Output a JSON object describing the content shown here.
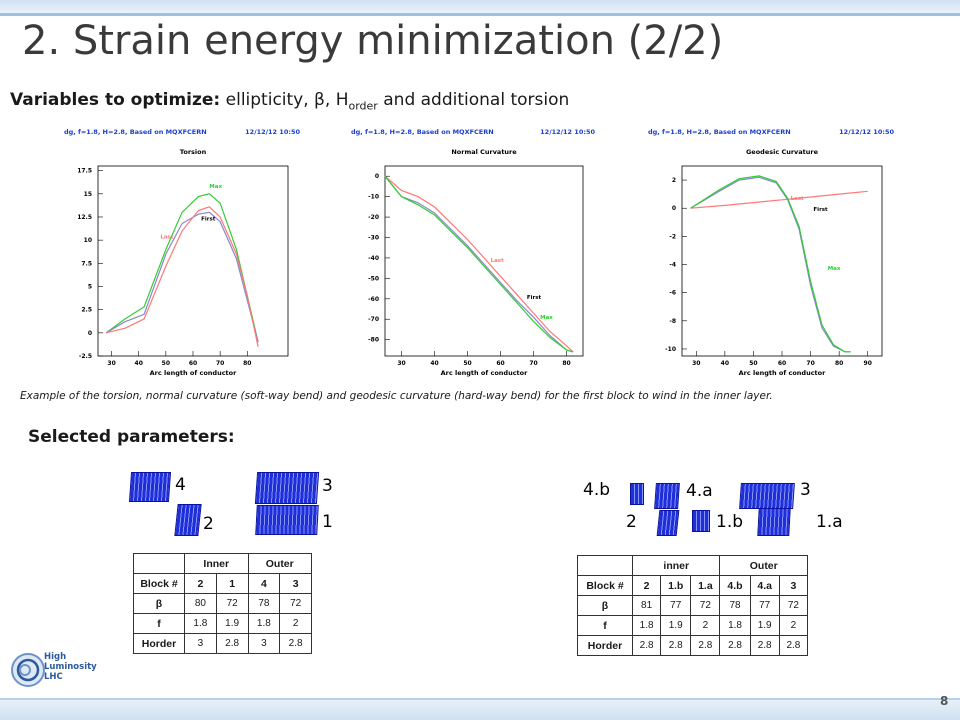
{
  "slide": {
    "title": "2. Strain energy minimization (2/2)",
    "subtitle_bold": "Variables to optimize:",
    "subtitle_rest_1": " ellipticity, β, H",
    "subtitle_sub": "order",
    "subtitle_rest_2": " and additional torsion",
    "caption": "Example of the torsion, normal curvature (soft-way bend) and geodesic curvature (hard-way bend) for the first block to wind in the inner layer.",
    "selected_label": "Selected parameters:",
    "page_number": "8"
  },
  "logo": {
    "line1": "High",
    "line2": "Luminosity",
    "line3": "LHC"
  },
  "plots": [
    {
      "header_left": "dg, f=1.8, H=2.8, Based on MQXFCERN",
      "header_right": "12/12/12   10:50",
      "plot_title": "Torsion",
      "xlabel": "Arc length of conductor",
      "x_ticks": [
        "30",
        "40",
        "50",
        "60",
        "70",
        "80"
      ],
      "y_ticks": [
        "17.5",
        "15",
        "12.5",
        "10",
        "7.5",
        "5",
        "2.5",
        "0",
        "-2.5"
      ],
      "legend": [
        "Max",
        "First",
        "Last"
      ]
    },
    {
      "header_left": "dg, f=1.8, H=2.8, Based on MQXFCERN",
      "header_right": "12/12/12   10:50",
      "plot_title": "Normal Curvature",
      "xlabel": "Arc length of conductor",
      "x_ticks": [
        "30",
        "40",
        "50",
        "60",
        "70",
        "80"
      ],
      "y_ticks": [
        "0",
        "-10",
        "-20",
        "-30",
        "-40",
        "-50",
        "-60",
        "-70",
        "-80"
      ],
      "legend": [
        "Last",
        "First",
        "Max"
      ]
    },
    {
      "header_left": "dg, f=1.8, H=2.8, Based on MQXFCERN",
      "header_right": "12/12/12   10:50",
      "plot_title": "Geodesic Curvature",
      "xlabel": "Arc length of conductor",
      "x_ticks": [
        "30",
        "40",
        "50",
        "60",
        "70",
        "80",
        "90"
      ],
      "y_ticks": [
        "2",
        "0",
        "-2",
        "-4",
        "-6",
        "-8",
        "-10"
      ],
      "legend": [
        "Last",
        "First",
        "Max"
      ]
    }
  ],
  "block_labels_left": [
    "4",
    "3",
    "2",
    "1"
  ],
  "block_labels_right": [
    "4.b",
    "4.a",
    "3",
    "2",
    "1.b",
    "1.a"
  ],
  "table_left": {
    "group_inner": "Inner",
    "group_outer": "Outer",
    "row_label_block": "Block #",
    "blocks": [
      "2",
      "1",
      "4",
      "3"
    ],
    "row_label_beta": "β",
    "beta": [
      "80",
      "72",
      "78",
      "72"
    ],
    "row_label_f": "f",
    "f": [
      "1.8",
      "1.9",
      "1.8",
      "2"
    ],
    "row_label_h": "Horder",
    "h": [
      "3",
      "2.8",
      "3",
      "2.8"
    ]
  },
  "table_right": {
    "group_inner": "inner",
    "group_outer": "Outer",
    "row_label_block": "Block #",
    "blocks": [
      "2",
      "1.b",
      "1.a",
      "4.b",
      "4.a",
      "3"
    ],
    "row_label_beta": "β",
    "beta": [
      "81",
      "77",
      "72",
      "78",
      "77",
      "72"
    ],
    "row_label_f": "f",
    "f": [
      "1.8",
      "1.9",
      "2",
      "1.8",
      "1.9",
      "2"
    ],
    "row_label_h": "Horder",
    "h": [
      "2.8",
      "2.8",
      "2.8",
      "2.8",
      "2.8",
      "2.8"
    ]
  },
  "chart_data": [
    {
      "type": "line",
      "title": "Torsion",
      "xlabel": "Arc length of conductor",
      "ylabel": "",
      "xlim": [
        25,
        95
      ],
      "ylim": [
        -2.5,
        18
      ],
      "series": [
        {
          "name": "Max",
          "color": "#33cc33",
          "x": [
            28,
            35,
            42,
            50,
            56,
            62,
            66,
            70,
            76,
            80,
            84
          ],
          "y": [
            0,
            1.5,
            2.8,
            9,
            13,
            14.7,
            15,
            14,
            9,
            4,
            -1
          ]
        },
        {
          "name": "First",
          "color": "#8888cc",
          "x": [
            28,
            35,
            42,
            50,
            56,
            62,
            66,
            70,
            76,
            80,
            84
          ],
          "y": [
            0,
            1.2,
            2.0,
            8.5,
            11.8,
            12.8,
            13,
            12,
            8,
            3.5,
            -1
          ]
        },
        {
          "name": "Last",
          "color": "#ff7777",
          "x": [
            28,
            35,
            42,
            50,
            56,
            62,
            66,
            70,
            76,
            80,
            84
          ],
          "y": [
            0,
            0.5,
            1.5,
            7.2,
            11.0,
            13.2,
            13.6,
            12.5,
            8.5,
            4,
            -1.5
          ]
        }
      ]
    },
    {
      "type": "line",
      "title": "Normal Curvature",
      "xlabel": "Arc length of conductor",
      "ylabel": "",
      "xlim": [
        25,
        85
      ],
      "ylim": [
        -88,
        5
      ],
      "series": [
        {
          "name": "Last",
          "color": "#ff7777",
          "x": [
            25,
            30,
            35,
            40,
            45,
            50,
            55,
            60,
            65,
            70,
            75,
            80,
            82
          ],
          "y": [
            0,
            -7,
            -10,
            -15,
            -23,
            -31,
            -40,
            -49,
            -58,
            -67,
            -76,
            -83,
            -86
          ]
        },
        {
          "name": "First",
          "color": "#8888cc",
          "x": [
            25,
            30,
            35,
            40,
            45,
            50,
            55,
            60,
            65,
            70,
            75,
            80,
            82
          ],
          "y": [
            0,
            -10,
            -13,
            -18,
            -26,
            -34,
            -43,
            -52,
            -61,
            -69,
            -78,
            -85,
            -86
          ]
        },
        {
          "name": "Max",
          "color": "#33cc33",
          "x": [
            25,
            30,
            35,
            40,
            45,
            50,
            55,
            60,
            65,
            70,
            75,
            80,
            82
          ],
          "y": [
            0,
            -10,
            -14,
            -19,
            -27,
            -35,
            -44,
            -53,
            -62,
            -71,
            -79,
            -85,
            -86
          ]
        }
      ]
    },
    {
      "type": "line",
      "title": "Geodesic Curvature",
      "xlabel": "Arc length of conductor",
      "ylabel": "",
      "xlim": [
        25,
        95
      ],
      "ylim": [
        -10.5,
        3
      ],
      "series": [
        {
          "name": "Last",
          "color": "#ff7777",
          "x": [
            28,
            40,
            50,
            60,
            70,
            80,
            90
          ],
          "y": [
            0,
            0.2,
            0.4,
            0.6,
            0.8,
            1.0,
            1.2
          ]
        },
        {
          "name": "First",
          "color": "#8888cc",
          "x": [
            28,
            38,
            45,
            52,
            58,
            62,
            66,
            70,
            74,
            78,
            82,
            84
          ],
          "y": [
            0,
            1.2,
            2.0,
            2.2,
            1.8,
            0.6,
            -1.5,
            -5.5,
            -8.5,
            -9.8,
            -10.2,
            -10.2
          ]
        },
        {
          "name": "Max",
          "color": "#33cc33",
          "x": [
            28,
            38,
            45,
            52,
            58,
            62,
            66,
            70,
            74,
            78,
            82,
            84
          ],
          "y": [
            0,
            1.3,
            2.1,
            2.3,
            1.9,
            0.7,
            -1.3,
            -5.2,
            -8.3,
            -9.7,
            -10.2,
            -10.2
          ]
        }
      ]
    }
  ]
}
